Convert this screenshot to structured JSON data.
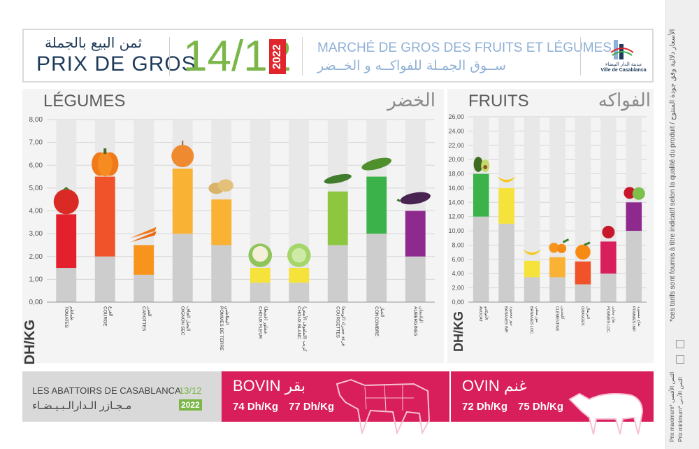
{
  "header": {
    "title_ar": "ثمن البيع بالجملة",
    "title_fr": "PRIX DE GROS",
    "date": "14/12",
    "year": "2022",
    "market_fr": "MARCHÉ DE GROS DES FRUITS ET LÉGUMES",
    "market_ar": "ســوق الجمـلة للفواكــه و الخــضر",
    "logo_ar": "مدينة الدار البيضاء",
    "logo_fr": "Ville de Casablanca"
  },
  "unit": "DH/KG",
  "colors": {
    "bar_min": "#cdcdcd",
    "red": "#e5202d",
    "orange_red": "#f0522a",
    "orange": "#f7941d",
    "light_orange": "#f9b233",
    "yellow": "#f5e23a",
    "light_green": "#8dc63f",
    "green": "#3cb34a",
    "purple": "#8e2a8e",
    "crimson": "#d81e5b",
    "header_green": "#7ab648"
  },
  "chart_data": [
    {
      "type": "bar",
      "title": "LÉGUMES",
      "title_ar": "الخضر",
      "ylabel": "DH/KG",
      "ylim": [
        0,
        8
      ],
      "yticks": [
        "0,00",
        "1,00",
        "2,00",
        "3,00",
        "4,00",
        "5,00",
        "6,00",
        "7,00",
        "8,00"
      ],
      "categories": [
        "TOMATES",
        "COURGE",
        "CAROTTES",
        "OIGNON SEC",
        "POMMES DE TERRE",
        "CHOUX FLEUR",
        "CHOUX BLANC",
        "COURGETTES",
        "CONCOMBRE",
        "AUBERGINES"
      ],
      "categories_ar": [
        "طماطم",
        "القرع",
        "الجزر",
        "البصل الجاف",
        "البطاطس",
        "شفلور (قنبيط)",
        "كرنب (الملفوف الأبيض)",
        "قرعة خضراء (كوسة)",
        "الخيار",
        "الباذنجان"
      ],
      "series": [
        {
          "name": "Prix minimum",
          "values": [
            1.5,
            2.0,
            1.2,
            3.0,
            2.5,
            0.85,
            0.85,
            2.5,
            3.0,
            2.0
          ]
        },
        {
          "name": "Prix maximum",
          "values": [
            3.85,
            5.5,
            2.5,
            5.85,
            4.5,
            1.5,
            1.5,
            4.85,
            5.5,
            4.0
          ]
        }
      ],
      "bar_colors": [
        "red",
        "orange_red",
        "orange",
        "light_orange",
        "light_orange",
        "yellow",
        "yellow",
        "light_green",
        "green",
        "purple"
      ],
      "icons": [
        "tomato-icon",
        "pumpkin-icon",
        "carrot-icon",
        "onion-icon",
        "potato-icon",
        "cauliflower-icon",
        "cabbage-icon",
        "zucchini-icon",
        "cucumber-icon",
        "eggplant-icon"
      ]
    },
    {
      "type": "bar",
      "title": "FRUITS",
      "title_ar": "الفواكه",
      "ylabel": "DH/KG",
      "ylim": [
        0,
        26
      ],
      "yticks": [
        "0,00",
        "2,00",
        "4,00",
        "6,00",
        "8,00",
        "10,00",
        "12,00",
        "14,00",
        "16,00",
        "18,00",
        "20,00",
        "22,00",
        "24,00",
        "26,00"
      ],
      "categories": [
        "AVOCAT",
        "BANANES IMP.",
        "BANANES LOC.",
        "CLÉMENTINE",
        "ORANGES",
        "POMMES LOC.",
        "POMMES IMP."
      ],
      "categories_ar": [
        "الأفوكادو",
        "موز مستورد",
        "موز محلي",
        "كليمنتين",
        "البرتقال",
        "تفاح محلي",
        "تفاح مستورد"
      ],
      "series": [
        {
          "name": "Prix minimum",
          "values": [
            12,
            11,
            3.5,
            3.5,
            2.5,
            4,
            10
          ]
        },
        {
          "name": "Prix maximum",
          "values": [
            18,
            16,
            5.8,
            6.3,
            5.7,
            8.5,
            14
          ]
        }
      ],
      "bar_colors": [
        "green",
        "yellow",
        "yellow",
        "light_orange",
        "orange_red",
        "crimson",
        "purple"
      ],
      "icons": [
        "avocado-icon",
        "banana-icon",
        "banana-icon",
        "clementine-icon",
        "orange-icon",
        "apple-red-icon",
        "apple-green-icon"
      ]
    }
  ],
  "abattoirs": {
    "title_fr": "LES ABATTOIRS DE CASABLANCA",
    "title_ar": "مـجـازر الـدارالـبـيـضـاء",
    "date": "13/12",
    "year": "2022",
    "bovin": {
      "label_fr": "BOVIN",
      "label_ar": "بقر",
      "min": "74 Dh/Kg",
      "max": "77 Dh/Kg"
    },
    "ovin": {
      "label_fr": "OVIN",
      "label_ar": "غنم",
      "min": "72 Dh/Kg",
      "max": "75 Dh/Kg"
    }
  },
  "side": {
    "disclaimer": "*ces tarifs sont fournis à titre indicatif selon la qualité du produit / الأسعار دلالية وفق جودة المنتوج",
    "legend_max": "Prix maximum* الثمن الأقصى",
    "legend_min": "Prix minimum* الثمن الأدنى"
  }
}
